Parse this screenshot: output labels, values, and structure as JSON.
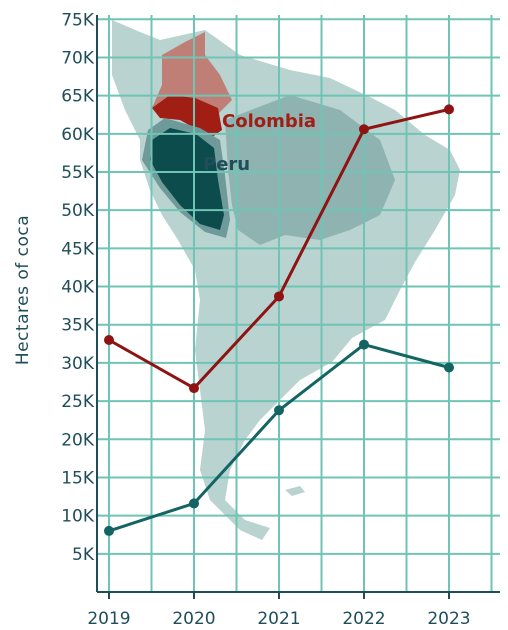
{
  "chart_data": {
    "type": "line",
    "title": "",
    "xlabel": "",
    "ylabel": "Hectares of coca",
    "x": [
      2019,
      2020,
      2021,
      2022,
      2023
    ],
    "x_tick_labels": [
      "2019",
      "2020",
      "2021",
      "2022",
      "2023"
    ],
    "y_tick_values": [
      5000,
      10000,
      15000,
      20000,
      25000,
      30000,
      35000,
      40000,
      45000,
      50000,
      55000,
      60000,
      65000,
      70000,
      75000
    ],
    "y_tick_labels": [
      "5K",
      "10K",
      "15K",
      "20K",
      "25K",
      "30K",
      "35K",
      "40K",
      "45K",
      "50K",
      "55K",
      "60K",
      "65K",
      "70K",
      "75K"
    ],
    "ylim": [
      0,
      77000
    ],
    "grid": true,
    "legend": "inline labels on map",
    "series": [
      {
        "name": "Colombia",
        "color": "#8e1414",
        "values": [
          33000,
          26700,
          38700,
          60600,
          63200
        ]
      },
      {
        "name": "Peru",
        "color": "#146464",
        "values": [
          8000,
          11600,
          23800,
          32400,
          29400
        ]
      }
    ]
  },
  "colors": {
    "grid": "#6fc4b5",
    "axis": "#1f4e5a",
    "map_land": "#b8d3d0",
    "map_region": "#8fb3b0",
    "colombia_fill": "#c07f76",
    "colombia_highlight": "#a01e14",
    "peru_fill": "#0d4c4c",
    "peru_halo": "#6e9a99"
  }
}
